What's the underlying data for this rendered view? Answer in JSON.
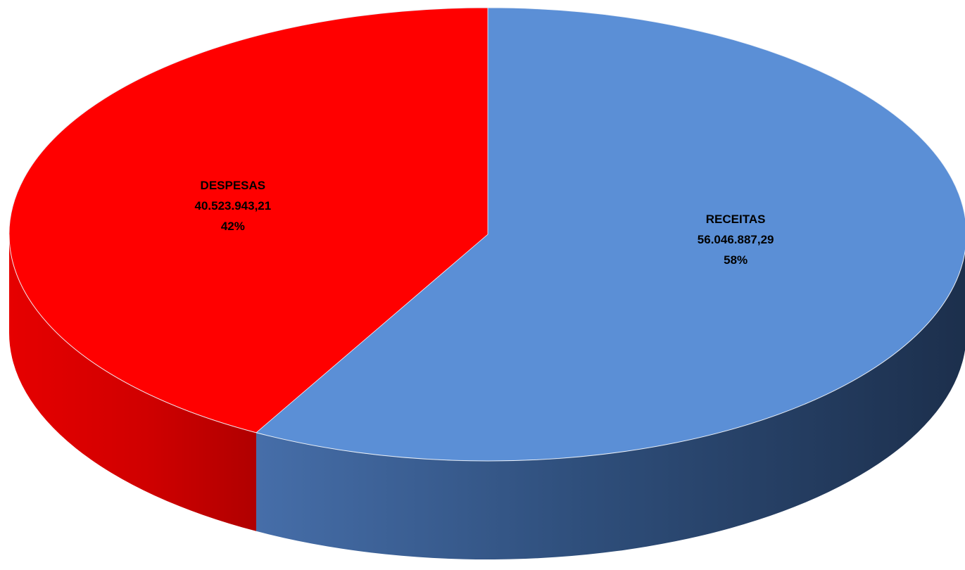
{
  "chart_data": {
    "type": "pie",
    "style": "3d",
    "title": "",
    "slices": [
      {
        "category": "RECEITAS",
        "value_label": "56.046.887,29",
        "value": 56046887.29,
        "percent_label": "58%",
        "percent": 58,
        "color": "#5B8FD6"
      },
      {
        "category": "DESPESAS",
        "value_label": "40.523.943,21",
        "value": 40523943.21,
        "percent_label": "42%",
        "percent": 42,
        "color": "#FF0000"
      }
    ],
    "legend": "none"
  }
}
